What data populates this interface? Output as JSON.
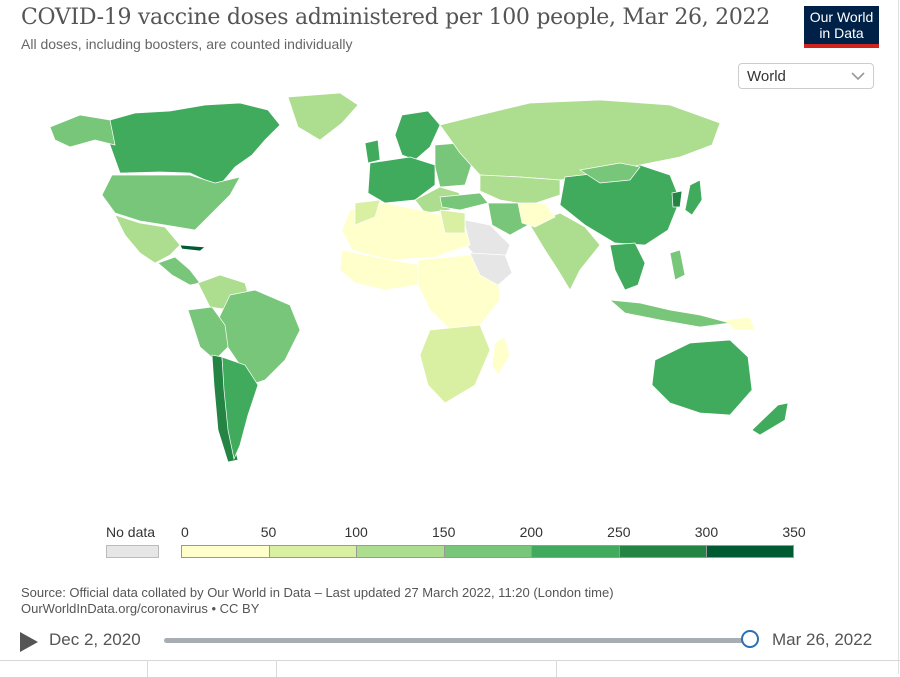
{
  "header": {
    "title": "COVID-19 vaccine doses administered per 100 people, Mar 26, 2022",
    "subtitle": "All doses, including boosters, are counted individually"
  },
  "logo": {
    "line1": "Our World",
    "line2": "in Data"
  },
  "region_select": {
    "value": "World"
  },
  "legend": {
    "no_data_label": "No data",
    "no_data_color": "#e6e6e6",
    "ticks": [
      "0",
      "50",
      "100",
      "150",
      "200",
      "250",
      "300",
      "350"
    ],
    "bins": [
      {
        "from": 0,
        "to": 50,
        "color": "#ffffcc"
      },
      {
        "from": 50,
        "to": 100,
        "color": "#d9f0a3"
      },
      {
        "from": 100,
        "to": 150,
        "color": "#addd8e"
      },
      {
        "from": 150,
        "to": 200,
        "color": "#78c679"
      },
      {
        "from": 200,
        "to": 250,
        "color": "#41ab5d"
      },
      {
        "from": 250,
        "to": 300,
        "color": "#238443"
      },
      {
        "from": 300,
        "to": 350,
        "color": "#005a32"
      }
    ]
  },
  "source": {
    "line1": "Source: Official data collated by Our World in Data – Last updated 27 March 2022, 11:20 (London time)",
    "line2": "OurWorldInData.org/coronavirus • CC BY"
  },
  "timeline": {
    "start": "Dec 2, 2020",
    "end": "Mar 26, 2022",
    "position": 1.0
  }
}
